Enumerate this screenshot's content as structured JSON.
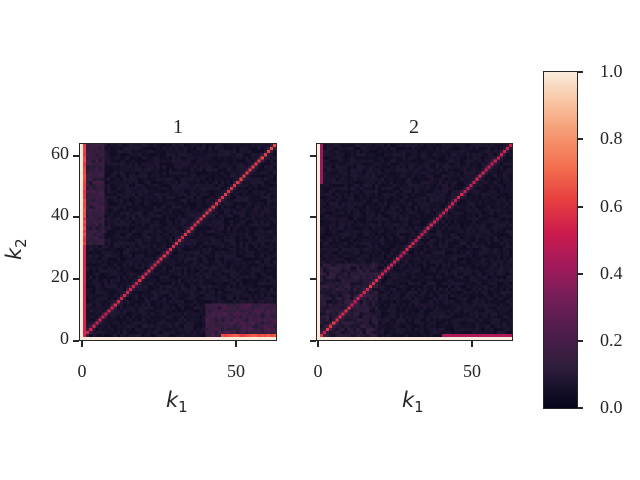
{
  "chart_data": {
    "type": "heatmap",
    "panels": [
      {
        "title": "1",
        "xlabel": "k1",
        "ylabel": "k2",
        "size": 64,
        "description": "Diagonal band ~0.5-0.6, bright edges at row 0 and column 0 (~1.0), off-diagonal mostly 0.0-0.1, elevated values near k1>45 at low k2 and low k1 at high k2"
      },
      {
        "title": "2",
        "xlabel": "k1",
        "ylabel": "",
        "size": 64,
        "description": "Diagonal band ~0.5, bright edges at row 0 and column 0 (~1.0), off-diagonal mostly 0.0-0.1, slight elevation at low k1/k2 region"
      }
    ],
    "x_ticks": [
      0,
      50
    ],
    "y_ticks": [
      0,
      20,
      40,
      60
    ],
    "xlim": [
      0,
      64
    ],
    "ylim": [
      0,
      64
    ],
    "colorbar": {
      "ticks": [
        "0.0",
        "0.2",
        "0.4",
        "0.6",
        "0.8",
        "1.0"
      ],
      "range": [
        0.0,
        1.0
      ],
      "colormap": "rocket"
    }
  },
  "panels": [
    {
      "title": "1",
      "xlabel": "k",
      "xsub": "1",
      "ylabel": "k",
      "ysub": "2"
    },
    {
      "title": "2",
      "xlabel": "k",
      "xsub": "1"
    }
  ],
  "yticks": [
    "60",
    "40",
    "20",
    "0"
  ],
  "xticks": [
    "0",
    "50"
  ],
  "colorbar_ticks": [
    "1.0",
    "0.8",
    "0.6",
    "0.4",
    "0.2",
    "0.0"
  ]
}
